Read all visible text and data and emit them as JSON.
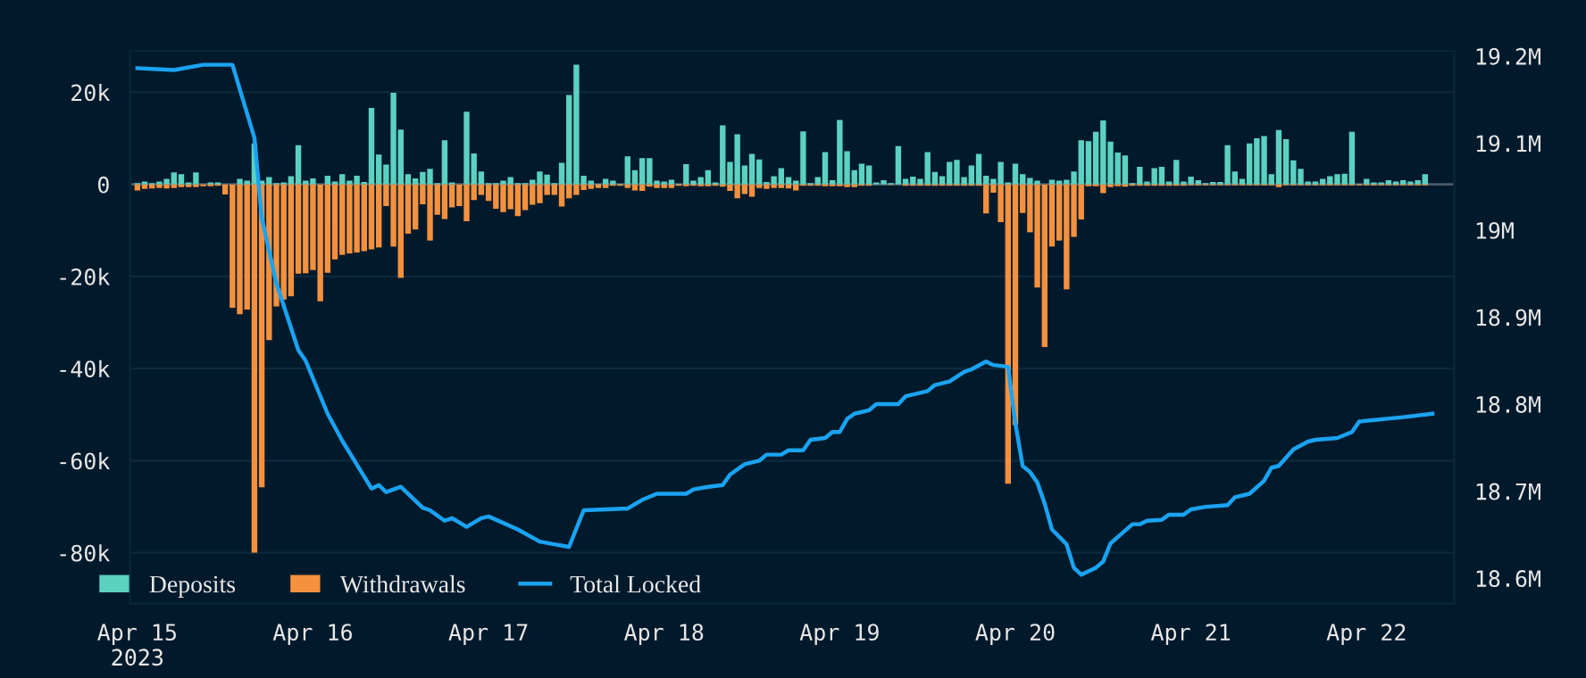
{
  "chart_data": {
    "type": "bar",
    "x": [
      "2023-04-15T00:00",
      "2023-04-15T01:00",
      "2023-04-15T02:00",
      "2023-04-15T03:00",
      "2023-04-15T04:00",
      "2023-04-15T05:00",
      "2023-04-15T06:00",
      "2023-04-15T07:00",
      "2023-04-15T08:00",
      "2023-04-15T09:00",
      "2023-04-15T10:00",
      "2023-04-15T11:00",
      "2023-04-15T12:00",
      "2023-04-15T13:00",
      "2023-04-15T14:00",
      "2023-04-15T15:00",
      "2023-04-15T16:00",
      "2023-04-15T17:00",
      "2023-04-15T18:00",
      "2023-04-15T19:00",
      "2023-04-15T20:00",
      "2023-04-15T21:00",
      "2023-04-15T22:00",
      "2023-04-15T23:00",
      "2023-04-16T00:00",
      "2023-04-16T01:00",
      "2023-04-16T02:00",
      "2023-04-16T03:00",
      "2023-04-16T04:00",
      "2023-04-16T05:00",
      "2023-04-16T06:00",
      "2023-04-16T07:00",
      "2023-04-16T08:00",
      "2023-04-16T09:00",
      "2023-04-16T10:00",
      "2023-04-16T11:00",
      "2023-04-16T12:00",
      "2023-04-16T13:00",
      "2023-04-16T14:00",
      "2023-04-16T15:00",
      "2023-04-16T16:00",
      "2023-04-16T17:00",
      "2023-04-16T18:00",
      "2023-04-16T19:00",
      "2023-04-16T20:00",
      "2023-04-16T21:00",
      "2023-04-16T22:00",
      "2023-04-16T23:00",
      "2023-04-17T00:00",
      "2023-04-17T01:00",
      "2023-04-17T02:00",
      "2023-04-17T03:00",
      "2023-04-17T04:00",
      "2023-04-17T05:00",
      "2023-04-17T06:00",
      "2023-04-17T07:00",
      "2023-04-17T08:00",
      "2023-04-17T09:00",
      "2023-04-17T10:00",
      "2023-04-17T11:00",
      "2023-04-17T12:00",
      "2023-04-17T13:00",
      "2023-04-17T14:00",
      "2023-04-17T15:00",
      "2023-04-17T16:00",
      "2023-04-17T17:00",
      "2023-04-17T18:00",
      "2023-04-17T19:00",
      "2023-04-17T20:00",
      "2023-04-17T21:00",
      "2023-04-17T22:00",
      "2023-04-17T23:00",
      "2023-04-18T00:00",
      "2023-04-18T01:00",
      "2023-04-18T02:00",
      "2023-04-18T03:00",
      "2023-04-18T04:00",
      "2023-04-18T05:00",
      "2023-04-18T06:00",
      "2023-04-18T07:00",
      "2023-04-18T08:00",
      "2023-04-18T09:00",
      "2023-04-18T10:00",
      "2023-04-18T11:00",
      "2023-04-18T12:00",
      "2023-04-18T13:00",
      "2023-04-18T14:00",
      "2023-04-18T15:00",
      "2023-04-18T16:00",
      "2023-04-18T17:00",
      "2023-04-18T18:00",
      "2023-04-18T19:00",
      "2023-04-18T20:00",
      "2023-04-18T21:00",
      "2023-04-18T22:00",
      "2023-04-18T23:00",
      "2023-04-19T00:00",
      "2023-04-19T01:00",
      "2023-04-19T02:00",
      "2023-04-19T03:00",
      "2023-04-19T04:00",
      "2023-04-19T05:00",
      "2023-04-19T06:00",
      "2023-04-19T07:00",
      "2023-04-19T08:00",
      "2023-04-19T09:00",
      "2023-04-19T10:00",
      "2023-04-19T11:00",
      "2023-04-19T12:00",
      "2023-04-19T13:00",
      "2023-04-19T14:00",
      "2023-04-19T15:00",
      "2023-04-19T16:00",
      "2023-04-19T17:00",
      "2023-04-19T18:00",
      "2023-04-19T19:00",
      "2023-04-19T20:00",
      "2023-04-19T21:00",
      "2023-04-19T22:00",
      "2023-04-19T23:00",
      "2023-04-20T00:00",
      "2023-04-20T01:00",
      "2023-04-20T02:00",
      "2023-04-20T03:00",
      "2023-04-20T04:00",
      "2023-04-20T05:00",
      "2023-04-20T06:00",
      "2023-04-20T07:00",
      "2023-04-20T08:00",
      "2023-04-20T09:00",
      "2023-04-20T10:00",
      "2023-04-20T11:00",
      "2023-04-20T12:00",
      "2023-04-20T13:00",
      "2023-04-20T14:00",
      "2023-04-20T15:00",
      "2023-04-20T16:00",
      "2023-04-20T17:00",
      "2023-04-20T18:00",
      "2023-04-20T19:00",
      "2023-04-20T20:00",
      "2023-04-20T21:00",
      "2023-04-20T22:00",
      "2023-04-20T23:00",
      "2023-04-21T00:00",
      "2023-04-21T01:00",
      "2023-04-21T02:00",
      "2023-04-21T03:00",
      "2023-04-21T04:00",
      "2023-04-21T05:00",
      "2023-04-21T06:00",
      "2023-04-21T07:00",
      "2023-04-21T08:00",
      "2023-04-21T09:00",
      "2023-04-21T10:00",
      "2023-04-21T11:00",
      "2023-04-21T12:00",
      "2023-04-21T13:00",
      "2023-04-21T14:00",
      "2023-04-21T15:00",
      "2023-04-21T16:00",
      "2023-04-21T17:00",
      "2023-04-21T18:00",
      "2023-04-21T19:00",
      "2023-04-21T20:00",
      "2023-04-21T21:00",
      "2023-04-21T22:00",
      "2023-04-21T23:00",
      "2023-04-22T00:00",
      "2023-04-22T01:00",
      "2023-04-22T02:00",
      "2023-04-22T03:00",
      "2023-04-22T04:00",
      "2023-04-22T05:00",
      "2023-04-22T06:00",
      "2023-04-22T07:00",
      "2023-04-22T08:00"
    ],
    "series": [
      {
        "name": "Deposits",
        "color": "#5cd1c1",
        "values": [
          300,
          600,
          300,
          600,
          1200,
          2600,
          2200,
          400,
          2600,
          null,
          400,
          400,
          0,
          0,
          1200,
          800,
          8900,
          800,
          1600,
          300,
          400,
          1800,
          8500,
          800,
          1300,
          0,
          1900,
          600,
          2200,
          800,
          1900,
          500,
          16600,
          6500,
          4300,
          19900,
          11900,
          2200,
          1300,
          2700,
          3400,
          300,
          9600,
          400,
          0,
          15800,
          6700,
          2800,
          300,
          300,
          800,
          1600,
          300,
          300,
          1000,
          2800,
          2100,
          300,
          4700,
          19400,
          26000,
          1900,
          800,
          100,
          1200,
          800,
          100,
          6100,
          3100,
          5700,
          5700,
          800,
          600,
          1000,
          100,
          4400,
          800,
          1600,
          3100,
          400,
          12800,
          4900,
          10900,
          4100,
          6600,
          5400,
          500,
          1800,
          3500,
          1600,
          800,
          11500,
          300,
          1600,
          7000,
          900,
          14000,
          7200,
          3100,
          4500,
          4100,
          400,
          900,
          300,
          8300,
          1200,
          1700,
          1200,
          7000,
          2700,
          1800,
          4900,
          5300,
          1600,
          4100,
          6600,
          1900,
          1200,
          4900,
          400,
          4500,
          2200,
          1400,
          800,
          0,
          1000,
          800,
          1000,
          2800,
          9600,
          9400,
          11400,
          13900,
          9300,
          6900,
          6300,
          300,
          3800,
          600,
          3500,
          3800,
          600,
          5300,
          600,
          1700,
          900,
          300,
          500,
          500,
          8500,
          2800,
          1200,
          8900,
          10000,
          10500,
          2200,
          11800,
          9800,
          5200,
          3400,
          600,
          600,
          1200,
          1800,
          2200,
          2300,
          11400,
          100,
          1200,
          400,
          400,
          900,
          600,
          900,
          600,
          900,
          2200
        ]
      },
      {
        "name": "Withdrawals",
        "color": "#f5913e",
        "values": [
          -1300,
          -1000,
          -900,
          -800,
          -900,
          -800,
          -600,
          -600,
          -600,
          -400,
          -400,
          -300,
          -2200,
          -26800,
          -28200,
          -27200,
          -80000,
          -65800,
          -33800,
          -26500,
          -25000,
          -24300,
          -19400,
          -19300,
          -18600,
          -25400,
          -19200,
          -16300,
          -15300,
          -15000,
          -14800,
          -14500,
          -14100,
          -13700,
          -4700,
          -13500,
          -20300,
          -10700,
          -9800,
          -4300,
          -12200,
          -6600,
          -7500,
          -5000,
          -4700,
          -8000,
          -3400,
          -2300,
          -3600,
          -5300,
          -6000,
          -5400,
          -6900,
          -5600,
          -4400,
          -4100,
          -2300,
          -2300,
          -4800,
          -3000,
          -2300,
          -1200,
          -1000,
          -800,
          -800,
          -300,
          -300,
          -800,
          -1300,
          -1400,
          -500,
          -800,
          -800,
          -800,
          -300,
          -400,
          -300,
          -400,
          -400,
          -300,
          -500,
          -1400,
          -3000,
          -2100,
          -2700,
          -800,
          -1000,
          -800,
          -800,
          -900,
          -1300,
          -300,
          -300,
          -300,
          -400,
          -400,
          -400,
          -600,
          -600,
          -300,
          -300,
          null,
          null,
          -100,
          null,
          -300,
          -300,
          -300,
          -300,
          -300,
          -300,
          -300,
          -300,
          -300,
          -300,
          -300,
          -6300,
          -1800,
          -8200,
          -65000,
          -52200,
          -6200,
          -10400,
          -22400,
          -35300,
          -13500,
          -12200,
          -22800,
          -11400,
          -7600,
          -400,
          -400,
          -1900,
          -600,
          -400,
          -500,
          -300,
          -300,
          -300,
          -300,
          -300,
          -300,
          -300,
          -300,
          -200,
          -200,
          -200,
          -200,
          -200,
          -200,
          -200,
          -200,
          -200,
          -200,
          -200,
          -200,
          -600,
          -200,
          -200,
          -200,
          -200,
          -200,
          -200,
          -200,
          -200,
          -200,
          -200,
          -200,
          -200,
          -200,
          -200,
          -200,
          -200,
          -200,
          -200,
          -200,
          -200
        ]
      },
      {
        "name": "Total Locked",
        "type": "line",
        "axis": "y2",
        "color": "#1aa3f2",
        "marker": "none",
        "line_style": "solid",
        "x": [
          "2023-04-15T00:00",
          "2023-04-15T05:00",
          "2023-04-15T09:00",
          "2023-04-15T13:00",
          "2023-04-15T16:00",
          "2023-04-15T17:00",
          "2023-04-15T19:00",
          "2023-04-15T22:00",
          "2023-04-15T23:00",
          "2023-04-16T02:00",
          "2023-04-16T04:00",
          "2023-04-16T08:00",
          "2023-04-16T09:00",
          "2023-04-16T10:00",
          "2023-04-16T12:00",
          "2023-04-16T15:00",
          "2023-04-16T16:00",
          "2023-04-16T18:00",
          "2023-04-16T19:00",
          "2023-04-16T21:00",
          "2023-04-16T23:00",
          "2023-04-17T00:00",
          "2023-04-17T04:00",
          "2023-04-17T07:00",
          "2023-04-17T09:00",
          "2023-04-17T11:00",
          "2023-04-17T13:00",
          "2023-04-17T19:00",
          "2023-04-17T20:00",
          "2023-04-17T21:00",
          "2023-04-17T23:00",
          "2023-04-18T03:00",
          "2023-04-18T04:00",
          "2023-04-18T06:00",
          "2023-04-18T08:00",
          "2023-04-18T09:00",
          "2023-04-18T11:00",
          "2023-04-18T13:00",
          "2023-04-18T14:00",
          "2023-04-18T16:00",
          "2023-04-18T17:00",
          "2023-04-18T19:00",
          "2023-04-18T20:00",
          "2023-04-18T22:00",
          "2023-04-18T23:00",
          "2023-04-19T00:00",
          "2023-04-19T01:00",
          "2023-04-19T02:00",
          "2023-04-19T04:00",
          "2023-04-19T05:00",
          "2023-04-19T08:00",
          "2023-04-19T09:00",
          "2023-04-19T12:00",
          "2023-04-19T13:00",
          "2023-04-19T15:00",
          "2023-04-19T17:00",
          "2023-04-19T18:00",
          "2023-04-19T20:00",
          "2023-04-19T21:00",
          "2023-04-19T23:00",
          "2023-04-20T00:00",
          "2023-04-20T01:00",
          "2023-04-20T02:00",
          "2023-04-20T03:00",
          "2023-04-20T04:00",
          "2023-04-20T05:00",
          "2023-04-20T07:00",
          "2023-04-20T08:00",
          "2023-04-20T09:00",
          "2023-04-20T11:00",
          "2023-04-20T12:00",
          "2023-04-20T13:00",
          "2023-04-20T16:00",
          "2023-04-20T17:00",
          "2023-04-20T18:00",
          "2023-04-20T20:00",
          "2023-04-20T21:00",
          "2023-04-20T23:00",
          "2023-04-21T00:00",
          "2023-04-21T02:00",
          "2023-04-21T05:00",
          "2023-04-21T06:00",
          "2023-04-21T08:00",
          "2023-04-21T10:00",
          "2023-04-21T11:00",
          "2023-04-21T12:00",
          "2023-04-21T14:00",
          "2023-04-21T16:00",
          "2023-04-21T17:00",
          "2023-04-21T20:00",
          "2023-04-21T22:00",
          "2023-04-21T23:00",
          "2023-04-22T05:00",
          "2023-04-22T09:00"
        ],
        "values": [
          19186000,
          19184000,
          19190000,
          19190000,
          19106000,
          19014000,
          18939000,
          18862000,
          18850000,
          18789000,
          18758000,
          18703000,
          18707000,
          18699000,
          18705000,
          18681000,
          18678000,
          18666000,
          18669000,
          18659000,
          18669000,
          18671000,
          18656000,
          18642000,
          18639000,
          18636000,
          18678000,
          18680000,
          18685000,
          18690000,
          18697000,
          18697000,
          18702000,
          18705000,
          18707000,
          18719000,
          18731000,
          18735000,
          18742000,
          18742000,
          18747000,
          18747000,
          18759000,
          18761000,
          18768000,
          18768000,
          18783000,
          18789000,
          18793000,
          18800000,
          18800000,
          18809000,
          18815000,
          18822000,
          18826000,
          18837000,
          18840000,
          18849000,
          18845000,
          18843000,
          18778000,
          18729000,
          18722000,
          18710000,
          18686000,
          18656000,
          18639000,
          18612000,
          18604000,
          18612000,
          18619000,
          18640000,
          18662000,
          18662000,
          18666000,
          18667000,
          18673000,
          18673000,
          18679000,
          18682000,
          18684000,
          18693000,
          18697000,
          18712000,
          18727000,
          18729000,
          18748000,
          18757000,
          18759000,
          18761000,
          18768000,
          18780000,
          18785000,
          18789000
        ]
      }
    ],
    "xlim": [
      "2023-04-14T23:00",
      "2023-04-22T12:00"
    ],
    "xticks": [
      {
        "value": "2023-04-15",
        "label": "Apr 15\n2023"
      },
      {
        "value": "2023-04-16",
        "label": "Apr 16"
      },
      {
        "value": "2023-04-17",
        "label": "Apr 17"
      },
      {
        "value": "2023-04-18",
        "label": "Apr 18"
      },
      {
        "value": "2023-04-19",
        "label": "Apr 19"
      },
      {
        "value": "2023-04-20",
        "label": "Apr 20"
      },
      {
        "value": "2023-04-21",
        "label": "Apr 21"
      },
      {
        "value": "2023-04-22",
        "label": "Apr 22"
      }
    ],
    "ylim": [
      -91000,
      29000
    ],
    "yticks": [
      {
        "value": -80000,
        "label": "-80k"
      },
      {
        "value": -60000,
        "label": "-60k"
      },
      {
        "value": -40000,
        "label": "-40k"
      },
      {
        "value": -20000,
        "label": "-20k"
      },
      0,
      {
        "value": 20000,
        "label": "20k"
      }
    ],
    "y2lim": [
      18571000,
      19206000
    ],
    "y2ticks": [
      {
        "value": 18600000,
        "label": "18.6M"
      },
      {
        "value": 18700000,
        "label": "18.7M"
      },
      {
        "value": 18800000,
        "label": "18.8M"
      },
      {
        "value": 18900000,
        "label": "18.9M"
      },
      {
        "value": 19000000,
        "label": "19M"
      },
      {
        "value": 19100000,
        "label": "19.1M"
      },
      {
        "value": 19200000,
        "label": "19.2M"
      }
    ],
    "ref_lines": [
      {
        "axis": "y",
        "value": 0,
        "color": "#4a5a66"
      }
    ],
    "grid": "y",
    "legend": "bottom left"
  }
}
